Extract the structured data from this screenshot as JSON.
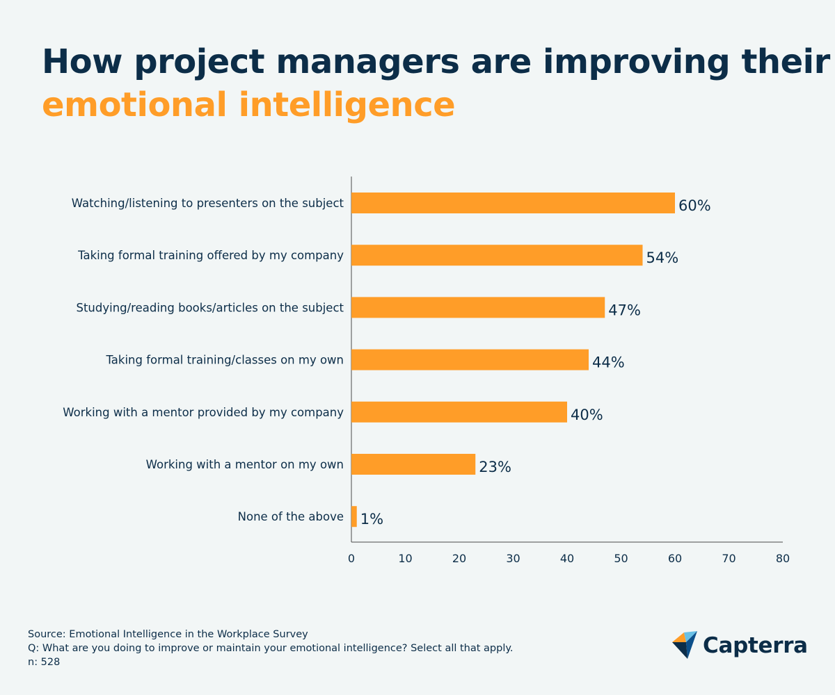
{
  "title": {
    "line1": "How project managers are improving their",
    "line2": "emotional intelligence"
  },
  "colors": {
    "title_dark": "#0c2d48",
    "title_accent": "#ff9d28",
    "bar": "#ff9d28",
    "background": "#f2f6f6"
  },
  "chart_data": {
    "type": "bar",
    "orientation": "horizontal",
    "categories": [
      "Watching/listening to presenters on the subject",
      "Taking formal training offered by my company",
      "Studying/reading books/articles on the subject",
      "Taking formal training/classes on my own",
      "Working with a mentor provided by my company",
      "Working with a mentor on my own",
      "None of the above"
    ],
    "values": [
      60,
      54,
      47,
      44,
      40,
      23,
      1
    ],
    "data_labels": [
      "60%",
      "54%",
      "47%",
      "44%",
      "40%",
      "23%",
      "1%"
    ],
    "xlim": [
      0,
      80
    ],
    "x_ticks": [
      0,
      10,
      20,
      30,
      40,
      50,
      60,
      70,
      80
    ],
    "grid": false
  },
  "footer": {
    "source": "Source: Emotional Intelligence in the Workplace Survey",
    "question": "Q: What are you doing to improve or maintain your emotional intelligence? Select all that apply.",
    "n": "n: 528"
  },
  "logo": {
    "text": "Capterra",
    "icon": "capterra-logo-icon"
  }
}
